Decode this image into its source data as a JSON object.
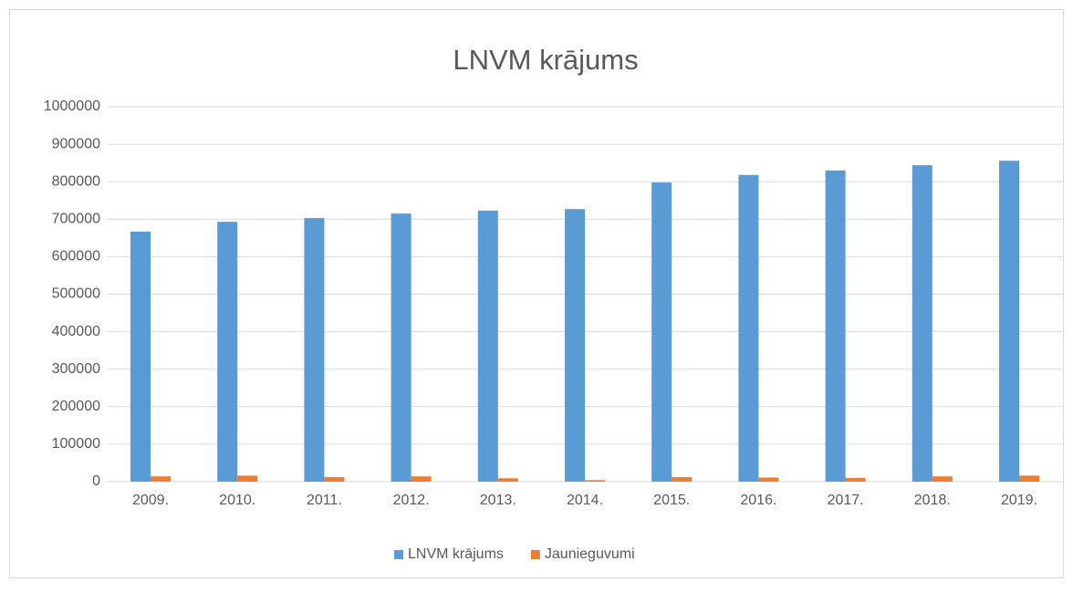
{
  "chart_data": {
    "type": "bar",
    "title": "LNVM krājums",
    "categories": [
      "2009.",
      "2010.",
      "2011.",
      "2012.",
      "2013.",
      "2014.",
      "2015.",
      "2016.",
      "2017.",
      "2018.",
      "2019."
    ],
    "series": [
      {
        "name": "LNVM krājums",
        "color": "#5b9bd5",
        "values": [
          667000,
          693000,
          703000,
          715000,
          723000,
          727000,
          798000,
          818000,
          830000,
          844000,
          856000
        ]
      },
      {
        "name": "Jaunieguvumi",
        "color": "#ed7d31",
        "values": [
          14000,
          16000,
          12000,
          14000,
          9000,
          4000,
          12000,
          11000,
          10000,
          14000,
          16000
        ]
      }
    ],
    "ylim": [
      0,
      1000000
    ],
    "yticks": [
      0,
      100000,
      200000,
      300000,
      400000,
      500000,
      600000,
      700000,
      800000,
      900000,
      1000000
    ],
    "grid": true,
    "legend": "bottom"
  }
}
